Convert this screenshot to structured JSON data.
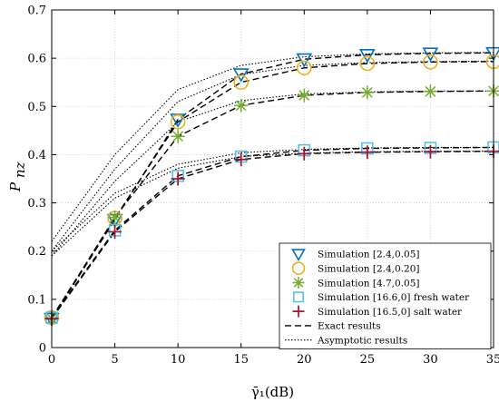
{
  "chart_data": {
    "type": "line",
    "xlabel": "γ̄₁(dB)",
    "ylabel": "P_nz",
    "xlim": [
      0,
      35
    ],
    "ylim": [
      0,
      0.7
    ],
    "xticks": [
      "0",
      "5",
      "10",
      "15",
      "20",
      "25",
      "30",
      "35"
    ],
    "yticks": [
      "0",
      "0.1",
      "0.2",
      "0.3",
      "0.4",
      "0.5",
      "0.6",
      "0.7"
    ],
    "grid": true,
    "legend_position": "bottom-right",
    "x": [
      0,
      5,
      10,
      15,
      20,
      25,
      30,
      35
    ],
    "series": [
      {
        "name": "Simulation [2.4,0.05]",
        "marker": "triangle-down",
        "color": "#0072BD",
        "values": [
          0.06,
          0.265,
          0.473,
          0.567,
          0.598,
          0.607,
          0.61,
          0.611
        ]
      },
      {
        "name": "Simulation [2.4,0.20]",
        "marker": "circle",
        "color": "#EDB120",
        "values": [
          0.062,
          0.268,
          0.468,
          0.55,
          0.58,
          0.589,
          0.592,
          0.593
        ]
      },
      {
        "name": "Simulation [4.7,0.05]",
        "marker": "asterisk",
        "color": "#77AC30",
        "values": [
          0.06,
          0.27,
          0.438,
          0.502,
          0.523,
          0.529,
          0.531,
          0.532
        ]
      },
      {
        "name": "Simulation [16.6,0] fresh water",
        "marker": "square",
        "color": "#4DBEEE",
        "values": [
          0.062,
          0.243,
          0.356,
          0.396,
          0.409,
          0.413,
          0.414,
          0.415
        ]
      },
      {
        "name": "Simulation [16.5,0] salt water",
        "marker": "plus",
        "color": "#A2142F",
        "values": [
          0.06,
          0.24,
          0.35,
          0.39,
          0.402,
          0.405,
          0.406,
          0.407
        ]
      }
    ],
    "exact_curves": [
      {
        "series": "Simulation [2.4,0.05]",
        "values": [
          0.06,
          0.265,
          0.473,
          0.567,
          0.598,
          0.607,
          0.61,
          0.611
        ]
      },
      {
        "series": "Simulation [2.4,0.20]",
        "values": [
          0.062,
          0.268,
          0.468,
          0.55,
          0.58,
          0.589,
          0.592,
          0.593
        ]
      },
      {
        "series": "Simulation [4.7,0.05]",
        "values": [
          0.06,
          0.27,
          0.438,
          0.502,
          0.523,
          0.529,
          0.531,
          0.532
        ]
      },
      {
        "series": "Simulation [16.6,0] fresh water",
        "values": [
          0.062,
          0.243,
          0.356,
          0.396,
          0.409,
          0.413,
          0.414,
          0.415
        ]
      },
      {
        "series": "Simulation [16.5,0] salt water",
        "values": [
          0.06,
          0.24,
          0.35,
          0.39,
          0.402,
          0.405,
          0.406,
          0.407
        ]
      }
    ],
    "asymptotic_curves": [
      {
        "series": "Simulation [2.4,0.05]",
        "values": [
          0.22,
          0.4,
          0.535,
          0.585,
          0.603,
          0.609,
          0.611,
          0.612
        ]
      },
      {
        "series": "Simulation [2.4,0.20]",
        "values": [
          0.2,
          0.37,
          0.51,
          0.566,
          0.585,
          0.591,
          0.593,
          0.594
        ]
      },
      {
        "series": "Simulation [4.7,0.05]",
        "values": [
          0.19,
          0.345,
          0.468,
          0.512,
          0.526,
          0.53,
          0.532,
          0.532
        ]
      },
      {
        "series": "Simulation [16.6,0] fresh water",
        "values": [
          0.2,
          0.32,
          0.38,
          0.404,
          0.411,
          0.414,
          0.415,
          0.415
        ]
      },
      {
        "series": "Simulation [16.5,0] salt water",
        "values": [
          0.19,
          0.31,
          0.372,
          0.396,
          0.403,
          0.406,
          0.407,
          0.407
        ]
      }
    ],
    "legend": [
      {
        "label": "Simulation [2.4,0.05]",
        "kind": "marker",
        "marker": "triangle-down",
        "color": "#0072BD"
      },
      {
        "label": "Simulation [2.4,0.20]",
        "kind": "marker",
        "marker": "circle",
        "color": "#EDB120"
      },
      {
        "label": "Simulation [4.7,0.05]",
        "kind": "marker",
        "marker": "asterisk",
        "color": "#77AC30"
      },
      {
        "label": "Simulation [16.6,0] fresh water",
        "kind": "marker",
        "marker": "square",
        "color": "#4DBEEE"
      },
      {
        "label": "Simulation [16.5,0] salt water",
        "kind": "marker",
        "marker": "plus",
        "color": "#A2142F"
      },
      {
        "label": "Exact results",
        "kind": "line",
        "dash": "dashed",
        "color": "#000000"
      },
      {
        "label": "Asymptotic results",
        "kind": "line",
        "dash": "dotted",
        "color": "#000000"
      }
    ]
  }
}
